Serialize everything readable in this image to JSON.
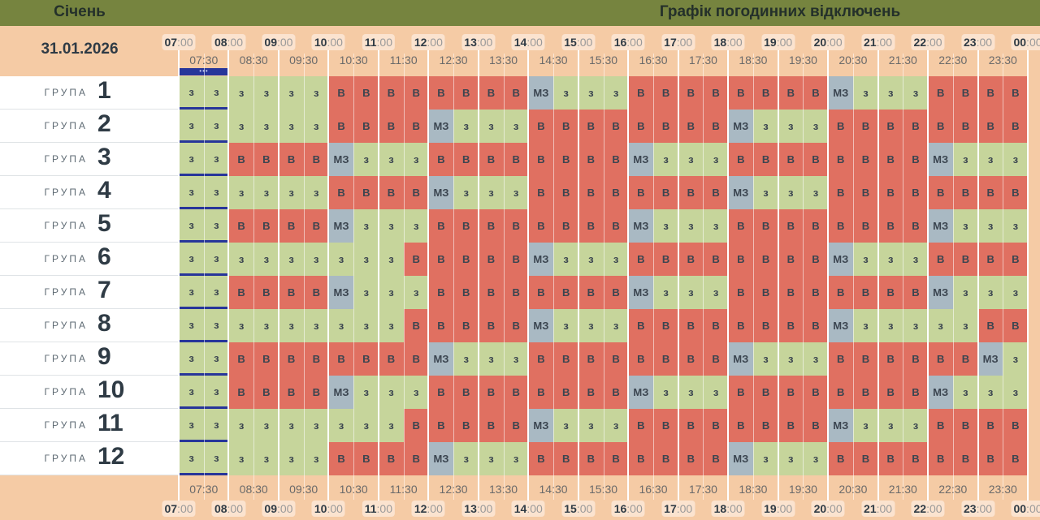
{
  "header": {
    "month": "Січень",
    "title": "Графік погодинних відключень",
    "date": "31.01.2026"
  },
  "hours": [
    "07",
    "08",
    "09",
    "10",
    "11",
    "12",
    "13",
    "14",
    "15",
    "16",
    "17",
    "18",
    "19",
    "20",
    "21",
    "22",
    "23",
    "00"
  ],
  "hour_suffix": ":00",
  "half_hours": [
    "07:30",
    "08:30",
    "09:30",
    "10:30",
    "11:30",
    "12:30",
    "13:30",
    "14:30",
    "15:30",
    "16:30",
    "17:30",
    "18:30",
    "19:30",
    "20:30",
    "21:30",
    "22:30",
    "23:30"
  ],
  "now_marker": "•••",
  "group_label": "ГРУПА",
  "colors": {
    "з": "#c6d59b",
    "В": "#e07061",
    "МЗ": "#a9b9c3",
    "current": "#27359a",
    "header": "#76843f"
  },
  "groups": [
    {
      "number": "1",
      "cells": [
        "з",
        "з",
        "з",
        "з",
        "з",
        "з",
        "В",
        "В",
        "В",
        "В",
        "В",
        "В",
        "В",
        "В",
        "МЗ",
        "з",
        "з",
        "з",
        "В",
        "В",
        "В",
        "В",
        "В",
        "В",
        "В",
        "В",
        "МЗ",
        "з",
        "з",
        "з",
        "В",
        "В",
        "В",
        "В"
      ]
    },
    {
      "number": "2",
      "cells": [
        "з",
        "з",
        "з",
        "з",
        "з",
        "з",
        "В",
        "В",
        "В",
        "В",
        "МЗ",
        "з",
        "з",
        "з",
        "В",
        "В",
        "В",
        "В",
        "В",
        "В",
        "В",
        "В",
        "МЗ",
        "з",
        "з",
        "з",
        "В",
        "В",
        "В",
        "В",
        "В",
        "В",
        "В",
        "В"
      ]
    },
    {
      "number": "3",
      "cells": [
        "з",
        "з",
        "В",
        "В",
        "В",
        "В",
        "МЗ",
        "з",
        "з",
        "з",
        "В",
        "В",
        "В",
        "В",
        "В",
        "В",
        "В",
        "В",
        "МЗ",
        "з",
        "з",
        "з",
        "В",
        "В",
        "В",
        "В",
        "В",
        "В",
        "В",
        "В",
        "МЗ",
        "з",
        "з",
        "з"
      ]
    },
    {
      "number": "4",
      "cells": [
        "з",
        "з",
        "з",
        "з",
        "з",
        "з",
        "В",
        "В",
        "В",
        "В",
        "МЗ",
        "з",
        "з",
        "з",
        "В",
        "В",
        "В",
        "В",
        "В",
        "В",
        "В",
        "В",
        "МЗ",
        "з",
        "з",
        "з",
        "В",
        "В",
        "В",
        "В",
        "В",
        "В",
        "В",
        "В"
      ]
    },
    {
      "number": "5",
      "cells": [
        "з",
        "з",
        "В",
        "В",
        "В",
        "В",
        "МЗ",
        "з",
        "з",
        "з",
        "В",
        "В",
        "В",
        "В",
        "В",
        "В",
        "В",
        "В",
        "МЗ",
        "з",
        "з",
        "з",
        "В",
        "В",
        "В",
        "В",
        "В",
        "В",
        "В",
        "В",
        "МЗ",
        "з",
        "з",
        "з"
      ]
    },
    {
      "number": "6",
      "cells": [
        "з",
        "з",
        "з",
        "з",
        "з",
        "з",
        "з",
        "з",
        "з",
        "В",
        "В",
        "В",
        "В",
        "В",
        "МЗ",
        "з",
        "з",
        "з",
        "В",
        "В",
        "В",
        "В",
        "В",
        "В",
        "В",
        "В",
        "МЗ",
        "з",
        "з",
        "з",
        "В",
        "В",
        "В",
        "В"
      ]
    },
    {
      "number": "7",
      "cells": [
        "з",
        "з",
        "В",
        "В",
        "В",
        "В",
        "МЗ",
        "з",
        "з",
        "з",
        "В",
        "В",
        "В",
        "В",
        "В",
        "В",
        "В",
        "В",
        "МЗ",
        "з",
        "з",
        "з",
        "В",
        "В",
        "В",
        "В",
        "В",
        "В",
        "В",
        "В",
        "МЗ",
        "з",
        "з",
        "з"
      ]
    },
    {
      "number": "8",
      "cells": [
        "з",
        "з",
        "з",
        "з",
        "з",
        "з",
        "з",
        "з",
        "з",
        "В",
        "В",
        "В",
        "В",
        "В",
        "МЗ",
        "з",
        "з",
        "з",
        "В",
        "В",
        "В",
        "В",
        "В",
        "В",
        "В",
        "В",
        "МЗ",
        "з",
        "з",
        "з",
        "з",
        "з",
        "В",
        "В"
      ]
    },
    {
      "number": "9",
      "cells": [
        "з",
        "з",
        "В",
        "В",
        "В",
        "В",
        "В",
        "В",
        "В",
        "В",
        "МЗ",
        "з",
        "з",
        "з",
        "В",
        "В",
        "В",
        "В",
        "В",
        "В",
        "В",
        "В",
        "МЗ",
        "з",
        "з",
        "з",
        "В",
        "В",
        "В",
        "В",
        "В",
        "В",
        "МЗ",
        "з"
      ]
    },
    {
      "number": "10",
      "cells": [
        "з",
        "з",
        "В",
        "В",
        "В",
        "В",
        "МЗ",
        "з",
        "з",
        "з",
        "В",
        "В",
        "В",
        "В",
        "В",
        "В",
        "В",
        "В",
        "МЗ",
        "з",
        "з",
        "з",
        "В",
        "В",
        "В",
        "В",
        "В",
        "В",
        "В",
        "В",
        "МЗ",
        "з",
        "з",
        "з"
      ]
    },
    {
      "number": "11",
      "cells": [
        "з",
        "з",
        "з",
        "з",
        "з",
        "з",
        "з",
        "з",
        "з",
        "В",
        "В",
        "В",
        "В",
        "В",
        "МЗ",
        "з",
        "з",
        "з",
        "В",
        "В",
        "В",
        "В",
        "В",
        "В",
        "В",
        "В",
        "МЗ",
        "з",
        "з",
        "з",
        "В",
        "В",
        "В",
        "В"
      ]
    },
    {
      "number": "12",
      "cells": [
        "з",
        "з",
        "з",
        "з",
        "з",
        "з",
        "В",
        "В",
        "В",
        "В",
        "МЗ",
        "з",
        "з",
        "з",
        "В",
        "В",
        "В",
        "В",
        "В",
        "В",
        "В",
        "В",
        "МЗ",
        "з",
        "з",
        "з",
        "В",
        "В",
        "В",
        "В",
        "В",
        "В",
        "В",
        "В"
      ]
    }
  ]
}
